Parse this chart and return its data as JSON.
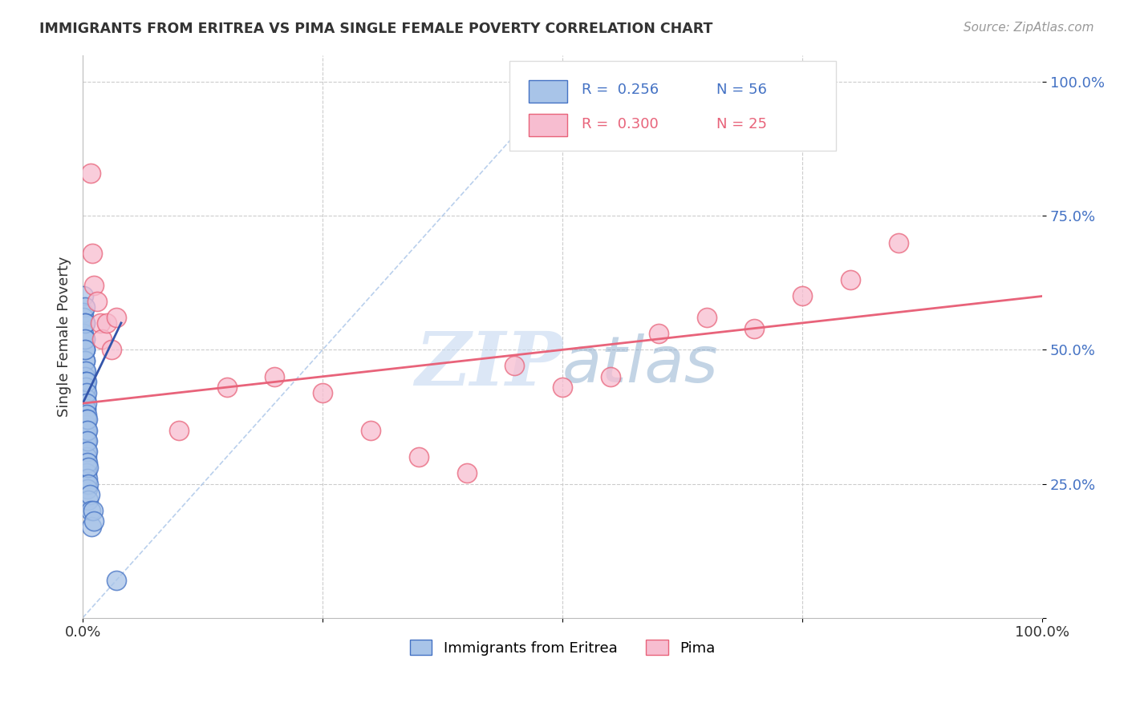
{
  "title": "IMMIGRANTS FROM ERITREA VS PIMA SINGLE FEMALE POVERTY CORRELATION CHART",
  "source": "Source: ZipAtlas.com",
  "ylabel_label": "Single Female Poverty",
  "legend_blue_r": "R =  0.256",
  "legend_blue_n": "N = 56",
  "legend_pink_r": "R =  0.300",
  "legend_pink_n": "N = 25",
  "blue_fill_color": "#A8C4E8",
  "blue_edge_color": "#4472C4",
  "pink_fill_color": "#F7BDD0",
  "pink_edge_color": "#E8637A",
  "pink_line_color": "#E8637A",
  "blue_line_color": "#3355AA",
  "diag_color": "#A8C4E8",
  "watermark_color": "#C5D8F0",
  "blue_dots": [
    [
      0.001,
      0.6
    ],
    [
      0.001,
      0.57
    ],
    [
      0.001,
      0.56
    ],
    [
      0.001,
      0.53
    ],
    [
      0.002,
      0.58
    ],
    [
      0.002,
      0.55
    ],
    [
      0.002,
      0.52
    ],
    [
      0.002,
      0.5
    ],
    [
      0.002,
      0.55
    ],
    [
      0.002,
      0.5
    ],
    [
      0.002,
      0.48
    ],
    [
      0.002,
      0.46
    ],
    [
      0.002,
      0.48
    ],
    [
      0.002,
      0.45
    ],
    [
      0.002,
      0.44
    ],
    [
      0.002,
      0.42
    ],
    [
      0.002,
      0.52
    ],
    [
      0.002,
      0.5
    ],
    [
      0.003,
      0.46
    ],
    [
      0.003,
      0.44
    ],
    [
      0.003,
      0.43
    ],
    [
      0.003,
      0.41
    ],
    [
      0.003,
      0.39
    ],
    [
      0.003,
      0.39
    ],
    [
      0.003,
      0.37
    ],
    [
      0.003,
      0.36
    ],
    [
      0.003,
      0.34
    ],
    [
      0.003,
      0.33
    ],
    [
      0.004,
      0.44
    ],
    [
      0.004,
      0.42
    ],
    [
      0.004,
      0.4
    ],
    [
      0.004,
      0.38
    ],
    [
      0.004,
      0.37
    ],
    [
      0.004,
      0.35
    ],
    [
      0.004,
      0.33
    ],
    [
      0.004,
      0.31
    ],
    [
      0.004,
      0.3
    ],
    [
      0.004,
      0.28
    ],
    [
      0.004,
      0.27
    ],
    [
      0.004,
      0.25
    ],
    [
      0.005,
      0.37
    ],
    [
      0.005,
      0.35
    ],
    [
      0.005,
      0.33
    ],
    [
      0.005,
      0.31
    ],
    [
      0.005,
      0.29
    ],
    [
      0.005,
      0.26
    ],
    [
      0.005,
      0.24
    ],
    [
      0.006,
      0.28
    ],
    [
      0.006,
      0.25
    ],
    [
      0.006,
      0.22
    ],
    [
      0.007,
      0.23
    ],
    [
      0.008,
      0.2
    ],
    [
      0.009,
      0.17
    ],
    [
      0.011,
      0.2
    ],
    [
      0.012,
      0.18
    ],
    [
      0.035,
      0.07
    ]
  ],
  "pink_dots": [
    [
      0.008,
      0.83
    ],
    [
      0.01,
      0.68
    ],
    [
      0.012,
      0.62
    ],
    [
      0.015,
      0.59
    ],
    [
      0.018,
      0.55
    ],
    [
      0.02,
      0.52
    ],
    [
      0.025,
      0.55
    ],
    [
      0.03,
      0.5
    ],
    [
      0.035,
      0.56
    ],
    [
      0.1,
      0.35
    ],
    [
      0.15,
      0.43
    ],
    [
      0.2,
      0.45
    ],
    [
      0.25,
      0.42
    ],
    [
      0.3,
      0.35
    ],
    [
      0.35,
      0.3
    ],
    [
      0.4,
      0.27
    ],
    [
      0.45,
      0.47
    ],
    [
      0.5,
      0.43
    ],
    [
      0.55,
      0.45
    ],
    [
      0.6,
      0.53
    ],
    [
      0.65,
      0.56
    ],
    [
      0.7,
      0.54
    ],
    [
      0.75,
      0.6
    ],
    [
      0.8,
      0.63
    ],
    [
      0.85,
      0.7
    ]
  ],
  "blue_regline_x": [
    0.0,
    0.04
  ],
  "blue_regline_y": [
    0.4,
    0.55
  ],
  "pink_regline_x": [
    0.0,
    1.0
  ],
  "pink_regline_y": [
    0.4,
    0.6
  ],
  "diag_line_x": [
    0.0,
    0.5
  ],
  "diag_line_y": [
    0.0,
    1.0
  ],
  "ytick_positions": [
    0.0,
    0.25,
    0.5,
    0.75,
    1.0
  ],
  "ytick_labels": [
    "",
    "25.0%",
    "50.0%",
    "75.0%",
    "100.0%"
  ],
  "xtick_positions": [
    0.0,
    0.25,
    0.5,
    0.75,
    1.0
  ],
  "xtick_labels": [
    "0.0%",
    "",
    "",
    "",
    "100.0%"
  ],
  "xlim": [
    0.0,
    1.0
  ],
  "ylim": [
    0.0,
    1.05
  ]
}
